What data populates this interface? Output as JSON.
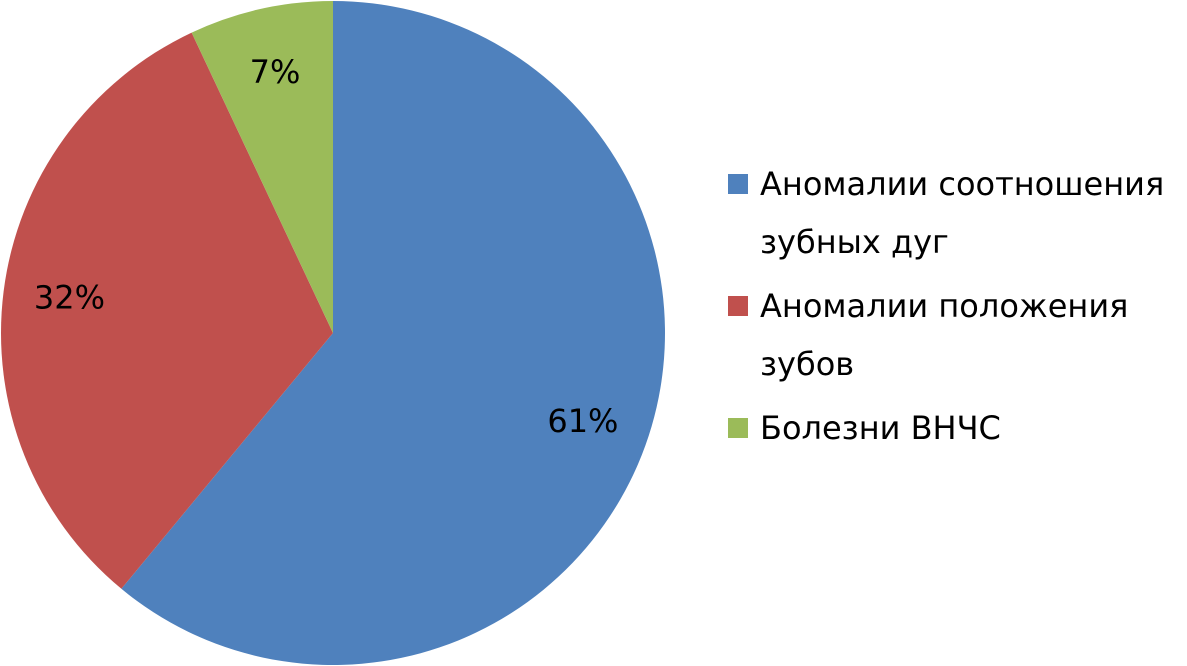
{
  "chart_data": {
    "type": "pie",
    "categories": [
      "Аномалии соотношения зубных дуг",
      "Аномалии положения зубов",
      "Болезни ВНЧС"
    ],
    "values": [
      61,
      32,
      7
    ],
    "value_labels": [
      "61%",
      "32%",
      "7%"
    ],
    "colors": [
      "#4f81bd",
      "#c0504d",
      "#9bbb59"
    ],
    "legend": "right"
  }
}
